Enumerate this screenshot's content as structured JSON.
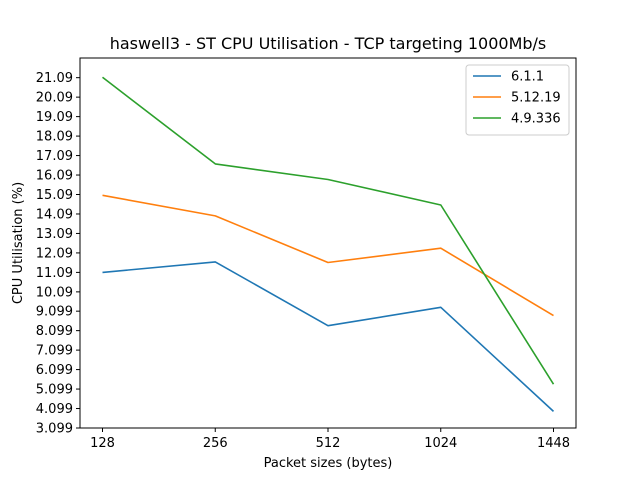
{
  "chart_data": {
    "type": "line",
    "title": "haswell3 - ST CPU Utilisation - TCP targeting 1000Mb/s",
    "xlabel": "Packet sizes (bytes)",
    "ylabel": "CPU Utilisation (%)",
    "categories": [
      "128",
      "256",
      "512",
      "1024",
      "1448"
    ],
    "y_ticks": [
      "3.099",
      "4.099",
      "5.099",
      "6.099",
      "7.099",
      "8.099",
      "9.099",
      "10.09",
      "11.09",
      "12.09",
      "13.09",
      "14.09",
      "15.09",
      "16.09",
      "17.09",
      "18.09",
      "19.09",
      "20.09",
      "21.09"
    ],
    "ylim": [
      3.099,
      22.1
    ],
    "grid": false,
    "legend_position": "top-right",
    "series": [
      {
        "name": "6.1.1",
        "color": "#1f77b4",
        "values": [
          11.09,
          11.63,
          8.35,
          9.3,
          3.95
        ]
      },
      {
        "name": "5.12.19",
        "color": "#ff7f0e",
        "values": [
          15.05,
          13.99,
          11.6,
          12.33,
          8.87
        ]
      },
      {
        "name": "4.9.336",
        "color": "#2ca02c",
        "values": [
          21.11,
          16.66,
          15.86,
          14.55,
          5.35
        ]
      }
    ]
  }
}
